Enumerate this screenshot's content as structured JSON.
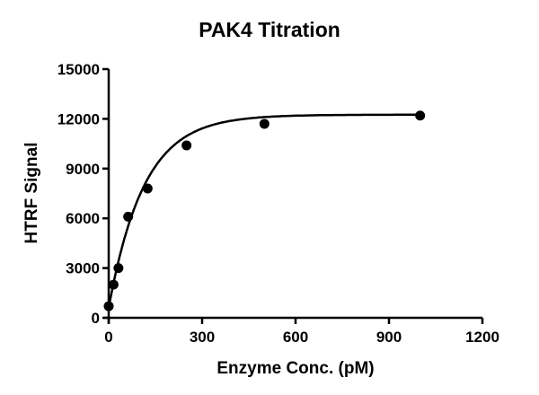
{
  "chart_data": {
    "type": "scatter",
    "title": "PAK4 Titration",
    "xlabel": "Enzyme Conc. (pM)",
    "ylabel": "HTRF Signal",
    "xlim": [
      0,
      1200
    ],
    "ylim": [
      0,
      15000
    ],
    "xticks": [
      0,
      300,
      600,
      900,
      1200
    ],
    "yticks": [
      0,
      3000,
      6000,
      9000,
      12000,
      15000
    ],
    "grid": false,
    "legend": null,
    "series": [
      {
        "name": "PAK4",
        "marker": "filled-circle",
        "x": [
          0,
          15.6,
          31.25,
          62.5,
          125,
          250,
          500,
          1000
        ],
        "y": [
          700,
          2000,
          3000,
          6100,
          7800,
          10400,
          11700,
          12200
        ]
      }
    ],
    "fit": {
      "type": "one-site saturation curve",
      "description": "smooth fitted curve rising from ~700 at 0 pM to a plateau ~12200"
    }
  }
}
